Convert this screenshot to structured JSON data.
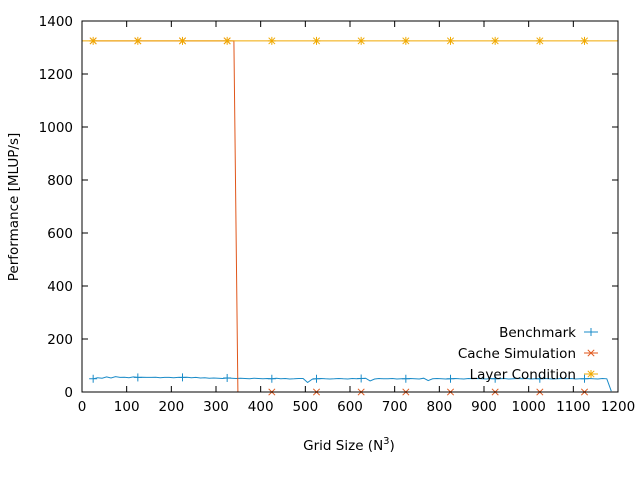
{
  "chart_data": {
    "type": "line",
    "title": "",
    "xlabel": "Grid Size (N",
    "xlabel_sup": "3",
    "xlabel_tail": ")",
    "ylabel": "Performance [MLUP/s]",
    "xlim": [
      0,
      1200
    ],
    "ylim": [
      0,
      1400
    ],
    "xticks": [
      0,
      100,
      200,
      300,
      400,
      500,
      600,
      700,
      800,
      900,
      1000,
      1100,
      1200
    ],
    "yticks": [
      0,
      200,
      400,
      600,
      800,
      1000,
      1200,
      1400
    ],
    "grid": false,
    "legend_position": "bottom-right",
    "series": [
      {
        "name": "Benchmark",
        "color": "#1a8bc8",
        "marker": "plus",
        "x": [
          25,
          35,
          45,
          55,
          65,
          75,
          85,
          95,
          105,
          115,
          125,
          135,
          145,
          155,
          165,
          175,
          185,
          195,
          205,
          215,
          225,
          235,
          245,
          255,
          265,
          275,
          285,
          295,
          305,
          315,
          325,
          335,
          345,
          355,
          365,
          375,
          385,
          395,
          405,
          415,
          425,
          435,
          445,
          455,
          465,
          475,
          485,
          495,
          505,
          515,
          525,
          535,
          545,
          555,
          565,
          575,
          585,
          595,
          605,
          615,
          625,
          635,
          645,
          655,
          665,
          675,
          685,
          695,
          705,
          715,
          725,
          735,
          745,
          755,
          765,
          775,
          785,
          795,
          805,
          815,
          825,
          835,
          845,
          855,
          865,
          875,
          885,
          895,
          905,
          915,
          925,
          935,
          945,
          955,
          965,
          975,
          985,
          995,
          1005,
          1015,
          1025,
          1035,
          1045,
          1055,
          1065,
          1075,
          1085,
          1095,
          1105,
          1115,
          1125,
          1135,
          1145,
          1155,
          1165,
          1175,
          1185
        ],
        "y": [
          50,
          54,
          52,
          57,
          53,
          58,
          55,
          56,
          54,
          57,
          55,
          56,
          55,
          55,
          56,
          54,
          55,
          55,
          54,
          55,
          55,
          56,
          54,
          55,
          53,
          54,
          52,
          53,
          52,
          51,
          53,
          52,
          51,
          52,
          51,
          50,
          52,
          51,
          50,
          51,
          50,
          52,
          50,
          51,
          49,
          50,
          51,
          51,
          36,
          48,
          50,
          51,
          50,
          49,
          50,
          51,
          50,
          49,
          51,
          50,
          51,
          52,
          42,
          49,
          51,
          50,
          50,
          51,
          49,
          50,
          50,
          51,
          50,
          49,
          52,
          43,
          50,
          51,
          50,
          49,
          50,
          51,
          50,
          49,
          51,
          50,
          51,
          50,
          49,
          51,
          50,
          50,
          51,
          49,
          50,
          51,
          50,
          51,
          49,
          50,
          50,
          51,
          50,
          49,
          50,
          51,
          50,
          51,
          49,
          50,
          50,
          51,
          50,
          49,
          51,
          50,
          3
        ]
      },
      {
        "name": "Cache Simulation",
        "color": "#e0561a",
        "marker": "cross",
        "x": [
          25,
          125,
          225,
          325,
          340,
          349,
          425,
          525,
          625,
          725,
          825,
          925,
          1025,
          1125
        ],
        "y": [
          1325,
          1325,
          1325,
          1325,
          1325,
          0,
          0,
          0,
          0,
          0,
          0,
          0,
          0,
          0
        ]
      },
      {
        "name": "Layer Condition",
        "color": "#f0a900",
        "marker": "star",
        "x": [
          0,
          25,
          125,
          225,
          325,
          425,
          525,
          625,
          725,
          825,
          925,
          1025,
          1125,
          1200
        ],
        "y": [
          1325,
          1325,
          1325,
          1325,
          1325,
          1325,
          1325,
          1325,
          1325,
          1325,
          1325,
          1325,
          1325,
          1325
        ]
      }
    ]
  }
}
